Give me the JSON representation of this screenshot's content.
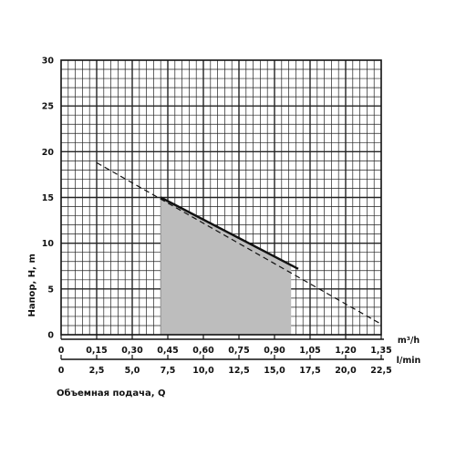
{
  "chart_data": {
    "type": "line",
    "ylabel": "Напор, Н, m",
    "xlabel": "Объемная подача, Q",
    "y_ticks": [
      "0",
      "5",
      "10",
      "15",
      "20",
      "25",
      "30"
    ],
    "ylim": [
      0,
      30
    ],
    "x_axis_m3h": {
      "unit": "m³/h",
      "ticks": [
        "0",
        "0,15",
        "0,30",
        "0,45",
        "0,60",
        "0,75",
        "0,90",
        "1,05",
        "1,20",
        "1,35"
      ],
      "range": [
        0,
        1.35
      ]
    },
    "x_axis_lmin": {
      "unit": "l/min",
      "ticks": [
        "0",
        "2,5",
        "5,0",
        "7,5",
        "10,0",
        "12,5",
        "15,0",
        "17,5",
        "20,0",
        "22,5"
      ],
      "range": [
        0,
        22.5
      ]
    },
    "grid": true,
    "series": [
      {
        "style": "dashed",
        "x_m3h": [
          0.15,
          1.34
        ],
        "y": [
          18.8,
          1.3
        ]
      },
      {
        "style": "solid",
        "x_m3h": [
          0.42,
          1.0
        ],
        "y": [
          15.0,
          7.2
        ]
      }
    ],
    "working_area": {
      "x_m3h": [
        0.42,
        0.97
      ],
      "upper_y": [
        15.0,
        7.5
      ]
    }
  }
}
